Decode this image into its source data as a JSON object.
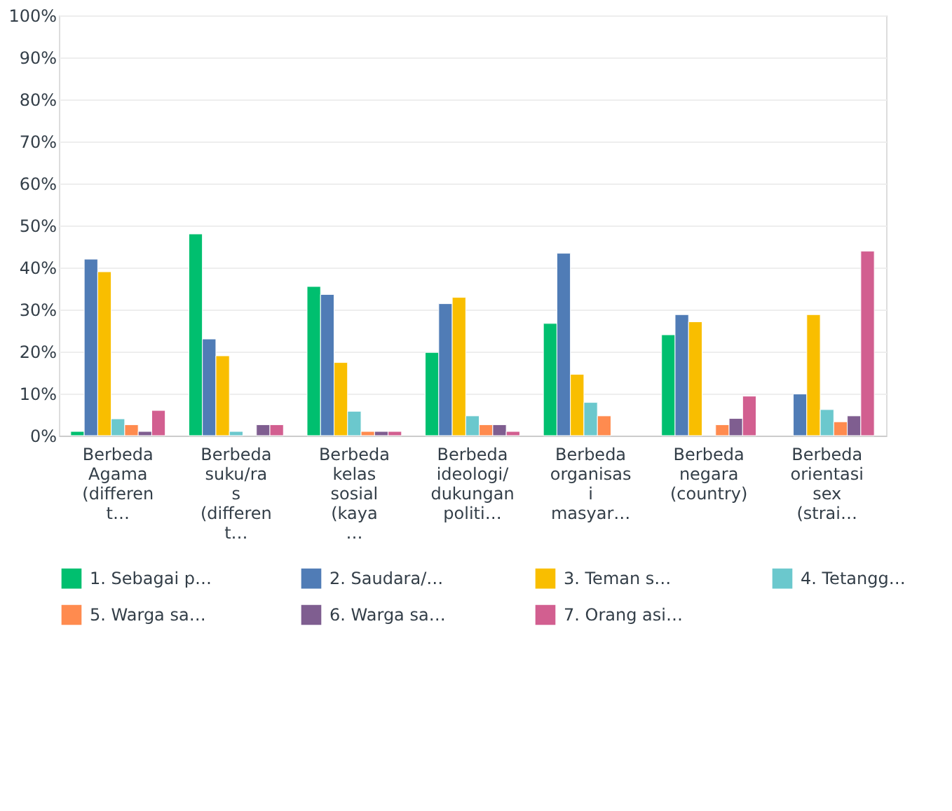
{
  "chart_data": {
    "type": "bar",
    "categories": [
      "Berbeda Agama (differen t…",
      "Berbeda suku/ra s (differen t…",
      "Berbeda kelas sosial (kaya …",
      "Berbeda ideologi/ dukungan politi…",
      "Berbeda organisas i masyar…",
      "Berbeda negara (country)",
      "Berbeda orientasi sex (strai…"
    ],
    "series": [
      {
        "name": "1. Sebagai p…",
        "color": "#00bf6f",
        "values": [
          1,
          48,
          35.5,
          19.8,
          26.7,
          24,
          null
        ]
      },
      {
        "name": "2. Saudara/…",
        "color": "#507cb6",
        "values": [
          42,
          23,
          33.6,
          31.4,
          43.4,
          28.8,
          9.9
        ]
      },
      {
        "name": "3. Teman s…",
        "color": "#f9be00",
        "values": [
          39,
          19,
          17.4,
          32.9,
          14.6,
          27.1,
          28.8
        ]
      },
      {
        "name": "4. Tetangg…",
        "color": "#6bc8cd",
        "values": [
          4,
          1,
          5.8,
          4.7,
          7.9,
          null,
          6.2
        ]
      },
      {
        "name": "5. Warga sa…",
        "color": "#ff8b4f",
        "values": [
          2.6,
          null,
          1,
          2.6,
          4.7,
          2.6,
          3.3
        ]
      },
      {
        "name": "6. Warga sa…",
        "color": "#7f5e90",
        "values": [
          1,
          2.6,
          1,
          2.6,
          null,
          4.1,
          4.7
        ]
      },
      {
        "name": "7. Orang asi…",
        "color": "#d25f90",
        "values": [
          6,
          2.6,
          1,
          1,
          null,
          9.4,
          43.9
        ]
      }
    ],
    "ylim": [
      0,
      100
    ],
    "yticks": [
      {
        "value": 0,
        "label": "0%"
      },
      {
        "value": 10,
        "label": "10%"
      },
      {
        "value": 20,
        "label": "20%"
      },
      {
        "value": 30,
        "label": "30%"
      },
      {
        "value": 40,
        "label": "40%"
      },
      {
        "value": 50,
        "label": "50%"
      },
      {
        "value": 60,
        "label": "60%"
      },
      {
        "value": 70,
        "label": "70%"
      },
      {
        "value": 80,
        "label": "80%"
      },
      {
        "value": 90,
        "label": "90%"
      },
      {
        "value": 100,
        "label": "100%"
      }
    ],
    "grid": "y",
    "legend": "bottom"
  }
}
